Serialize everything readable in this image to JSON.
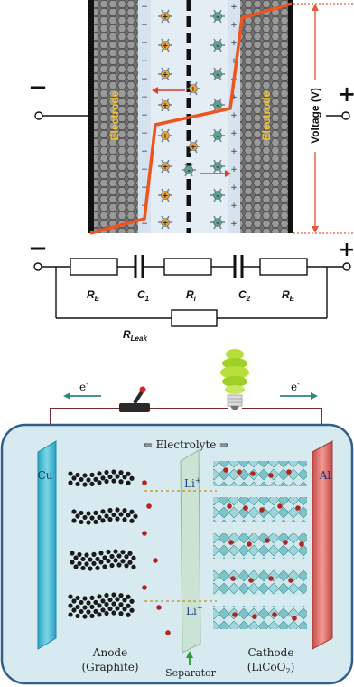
{
  "top_diagram": {
    "electrode_left": "Electrode",
    "electrode_right": "Electrode",
    "voltage_label": "Voltage (V)",
    "minus": "−",
    "plus": "+"
  },
  "circuit": {
    "minus": "−",
    "plus": "+",
    "labels": [
      "R",
      "C",
      "R",
      "C",
      "R"
    ],
    "subscripts": [
      "E",
      "1",
      "i",
      "2",
      "E"
    ],
    "leak_main": "R",
    "leak_sub": "Leak"
  },
  "battery": {
    "electron_left": "e",
    "electron_right": "e",
    "electron_sup": "-",
    "electrolyte": "⇐ Electrolyte ⇒",
    "cu": "Cu",
    "al": "Al",
    "li_top": "Li",
    "li_bottom": "Li",
    "li_sup": "+",
    "anode": "Anode",
    "anode_sub": "(Graphite)",
    "separator": "Separator",
    "cathode": "Cathode",
    "cathode_sub": "(LiCoO",
    "cathode_sub_2": "2",
    "cathode_sub_end": ")"
  },
  "colors": {
    "electrode_gray": "#7d7d7d",
    "electrode_label": "#f2c230",
    "voltage_line": "#f0541e",
    "cation": "#e8a23a",
    "anion": "#5aa48c",
    "battery_fill": "#d6eaf0",
    "cu_plate": "#57c3d8",
    "al_plate": "#dc6a66",
    "wire": "#7a2a2a"
  }
}
